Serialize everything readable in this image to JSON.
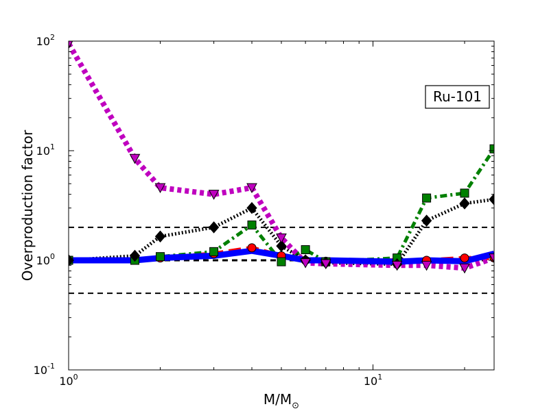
{
  "chart_data": {
    "type": "line",
    "x_scale": "log",
    "y_scale": "log",
    "xlim": [
      1,
      25
    ],
    "ylim": [
      0.1,
      100
    ],
    "xlabel_main": "M/M",
    "xlabel_sub": "⊙",
    "ylabel": "Overproduction factor",
    "x_ticks": [
      {
        "value": 1,
        "base": "10",
        "exp": "0"
      },
      {
        "value": 10,
        "base": "10",
        "exp": "1"
      }
    ],
    "y_ticks": [
      {
        "value": 0.1,
        "base": "10",
        "exp": "-1"
      },
      {
        "value": 1,
        "base": "10",
        "exp": "0"
      },
      {
        "value": 10,
        "base": "10",
        "exp": "1"
      },
      {
        "value": 100,
        "base": "10",
        "exp": "2"
      }
    ],
    "annotation": "Ru-101",
    "reference_lines": [
      0.5,
      1,
      2
    ],
    "series": [
      {
        "key": "red",
        "color": "#ff0000",
        "marker": "circle",
        "dash": "18,8",
        "width": 6,
        "x": [
          1,
          1.65,
          2,
          3,
          4,
          5,
          6,
          7,
          12,
          15,
          20,
          25
        ],
        "y": [
          1.0,
          1.0,
          1.05,
          1.15,
          1.3,
          1.1,
          1.0,
          0.98,
          1.0,
          1.0,
          1.05,
          1.05
        ]
      },
      {
        "key": "green",
        "color": "#008000",
        "marker": "square",
        "dash": "10,5,3,5",
        "width": 5,
        "x": [
          1,
          1.65,
          2,
          3,
          4,
          5,
          6,
          7,
          12,
          15,
          20,
          25
        ],
        "y": [
          1.0,
          1.0,
          1.08,
          1.2,
          2.1,
          0.97,
          1.25,
          0.97,
          1.05,
          3.7,
          4.1,
          10.4
        ]
      },
      {
        "key": "black",
        "color": "#000000",
        "marker": "diamond",
        "dash": "2,3",
        "width": 5,
        "x": [
          1,
          1.65,
          2,
          3,
          4,
          5,
          6,
          7,
          12,
          15,
          20,
          25
        ],
        "y": [
          1.0,
          1.1,
          1.65,
          2.0,
          3.0,
          1.35,
          1.0,
          0.95,
          0.92,
          2.3,
          3.3,
          3.6
        ]
      },
      {
        "key": "magenta",
        "color": "#bf00bf",
        "marker": "triangle-down",
        "dash": "6,5",
        "width": 8,
        "x": [
          1,
          1.65,
          2,
          3,
          4,
          5,
          6,
          7,
          12,
          15,
          20,
          25
        ],
        "y": [
          95,
          8.5,
          4.6,
          4.0,
          4.6,
          1.6,
          0.95,
          0.93,
          0.9,
          0.9,
          0.85,
          1.05
        ]
      },
      {
        "key": "blue",
        "color": "#0000ff",
        "marker": "none",
        "dash": "",
        "width": 9,
        "x": [
          1,
          1.65,
          2,
          3,
          4,
          5,
          6,
          7,
          12,
          15,
          20,
          25
        ],
        "y": [
          1.0,
          1.0,
          1.05,
          1.1,
          1.22,
          1.1,
          1.0,
          1.0,
          0.97,
          1.0,
          0.98,
          1.15
        ]
      }
    ]
  }
}
